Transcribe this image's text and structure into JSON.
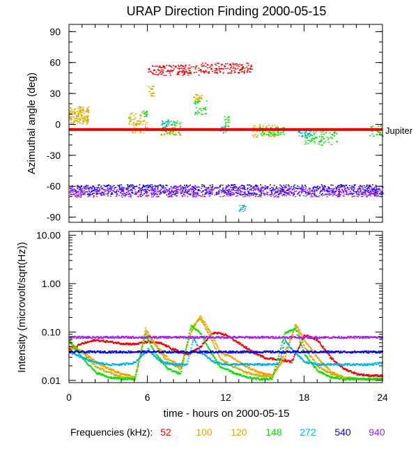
{
  "chart_data": [
    {
      "type": "scatter",
      "title": "URAP Direction Finding  2000-05-15",
      "xlabel": "",
      "ylabel": "Azimuthal angle (deg)",
      "xlim": [
        0,
        24
      ],
      "ylim": [
        -95,
        97
      ],
      "xticks": [
        0,
        6,
        12,
        18,
        24
      ],
      "yticks": [
        90,
        60,
        30,
        0,
        -30,
        -60,
        -90
      ],
      "ytick_labels": [
        "90",
        "60",
        "30",
        "0",
        "-30",
        "-60",
        "-90"
      ],
      "reference_line": {
        "label": "Jupiter",
        "y": -5,
        "color": "#e80000"
      },
      "series": [
        {
          "name": "52",
          "color": "#e80000",
          "clusters": [
            [
              6.0,
              10.0,
              48,
              58
            ],
            [
              10.0,
              14.0,
              50,
              60
            ]
          ]
        },
        {
          "name": "100",
          "color": "#f0a000",
          "clusters": [
            [
              0.0,
              1.5,
              2,
              18
            ],
            [
              4.8,
              6.0,
              -8,
              5
            ],
            [
              7.0,
              8.5,
              -10,
              -2
            ],
            [
              9.5,
              10.2,
              22,
              30
            ]
          ]
        },
        {
          "name": "120",
          "color": "#d0b000",
          "clusters": [
            [
              0.0,
              1.5,
              0,
              15
            ],
            [
              4.5,
              5.5,
              0,
              12
            ],
            [
              6.0,
              6.5,
              28,
              38
            ],
            [
              14.0,
              16.0,
              -12,
              0
            ]
          ]
        },
        {
          "name": "148",
          "color": "#00e000",
          "clusters": [
            [
              5.5,
              6.0,
              8,
              14
            ],
            [
              7.0,
              8.5,
              -10,
              5
            ],
            [
              9.5,
              10.5,
              10,
              25
            ],
            [
              11.8,
              12.3,
              -2,
              8
            ],
            [
              14.5,
              16.5,
              -10,
              -2
            ],
            [
              18.0,
              20.5,
              -20,
              -5
            ],
            [
              23.0,
              24.0,
              -12,
              0
            ]
          ]
        },
        {
          "name": "272",
          "color": "#00b0e0",
          "clusters": [
            [
              7.0,
              8.0,
              -5,
              5
            ],
            [
              11.5,
              12.0,
              -8,
              -2
            ],
            [
              13.0,
              13.5,
              -78,
              -84
            ],
            [
              17.5,
              18.5,
              -12,
              -5
            ]
          ]
        },
        {
          "name": "540",
          "color": "#0000e0",
          "clusters": [
            [
              0.0,
              24.0,
              -58,
              -68
            ]
          ]
        },
        {
          "name": "940",
          "color": "#a020f0",
          "clusters": [
            [
              0.0,
              24.0,
              -60,
              -70
            ]
          ]
        }
      ]
    },
    {
      "type": "line",
      "title": "",
      "xlabel": "time - hours on 2000-05-15",
      "ylabel": "Intensity (microvolt/sqrt(Hz))",
      "yscale": "log",
      "xlim": [
        0,
        24
      ],
      "ylim": [
        0.009,
        12
      ],
      "xticks": [
        0,
        6,
        12,
        18,
        24
      ],
      "xtick_labels": [
        "0",
        "6",
        "12",
        "18",
        "24"
      ],
      "yticks": [
        10.0,
        1.0,
        0.1,
        0.01
      ],
      "ytick_labels": [
        "10.00",
        "1.00",
        "0.10",
        "0.01"
      ],
      "series": [
        {
          "name": "52",
          "color": "#e80000",
          "x": [
            0,
            1,
            2,
            3,
            4,
            5,
            6,
            7,
            8,
            9,
            10,
            11,
            12,
            13,
            14,
            15,
            16,
            17,
            18,
            19,
            20,
            21,
            22,
            23,
            24
          ],
          "y": [
            0.045,
            0.06,
            0.07,
            0.065,
            0.06,
            0.058,
            0.065,
            0.06,
            0.045,
            0.035,
            0.05,
            0.1,
            0.09,
            0.06,
            0.04,
            0.03,
            0.028,
            0.025,
            0.09,
            0.07,
            0.03,
            0.018,
            0.014,
            0.013,
            0.013
          ]
        },
        {
          "name": "100",
          "color": "#f0a000",
          "x": [
            0,
            1,
            2,
            3,
            4,
            5,
            5.8,
            6.5,
            7.5,
            8.5,
            9.3,
            10,
            10.8,
            11.5,
            12.5,
            13.5,
            14.5,
            15.5,
            16.5,
            17.3,
            18,
            19,
            20,
            21,
            22,
            23,
            24
          ],
          "y": [
            0.05,
            0.04,
            0.025,
            0.018,
            0.014,
            0.012,
            0.1,
            0.06,
            0.03,
            0.02,
            0.1,
            0.22,
            0.1,
            0.04,
            0.03,
            0.02,
            0.015,
            0.013,
            0.03,
            0.15,
            0.07,
            0.03,
            0.016,
            0.012,
            0.011,
            0.011,
            0.011
          ]
        },
        {
          "name": "120",
          "color": "#d0b000",
          "x": [
            0,
            1,
            2,
            3,
            4,
            5,
            5.8,
            6.5,
            7.5,
            8.5,
            9.3,
            10,
            10.8,
            11.5,
            12.5,
            13.5,
            14.5,
            15.5,
            16.5,
            17.3,
            18,
            19,
            20,
            21,
            22,
            23,
            24
          ],
          "y": [
            0.06,
            0.04,
            0.02,
            0.015,
            0.012,
            0.011,
            0.12,
            0.06,
            0.025,
            0.018,
            0.12,
            0.2,
            0.08,
            0.03,
            0.02,
            0.015,
            0.013,
            0.012,
            0.04,
            0.14,
            0.05,
            0.02,
            0.014,
            0.012,
            0.011,
            0.011,
            0.011
          ]
        },
        {
          "name": "148",
          "color": "#00e000",
          "x": [
            0,
            1,
            2,
            3,
            4,
            5,
            5.8,
            6.5,
            7.5,
            8.5,
            9.3,
            10,
            10.8,
            11.5,
            12.5,
            13.5,
            14.5,
            15.5,
            16.5,
            17.3,
            18,
            19,
            20,
            21,
            22,
            23,
            24
          ],
          "y": [
            0.07,
            0.03,
            0.015,
            0.012,
            0.011,
            0.011,
            0.09,
            0.04,
            0.018,
            0.014,
            0.14,
            0.1,
            0.04,
            0.02,
            0.015,
            0.012,
            0.011,
            0.011,
            0.1,
            0.12,
            0.035,
            0.016,
            0.012,
            0.011,
            0.011,
            0.011,
            0.011
          ]
        },
        {
          "name": "272",
          "color": "#00b0e0",
          "x": [
            0,
            1,
            2,
            3,
            4,
            5,
            6,
            7,
            8,
            9,
            9.5,
            10,
            11,
            12,
            13,
            14,
            15,
            16,
            16.5,
            17,
            18,
            19,
            20,
            21,
            22,
            23,
            24
          ],
          "y": [
            0.04,
            0.03,
            0.024,
            0.022,
            0.022,
            0.024,
            0.045,
            0.025,
            0.022,
            0.022,
            0.08,
            0.04,
            0.025,
            0.022,
            0.022,
            0.022,
            0.022,
            0.022,
            0.07,
            0.045,
            0.025,
            0.022,
            0.022,
            0.022,
            0.022,
            0.022,
            0.024
          ]
        },
        {
          "name": "540",
          "color": "#0000e0",
          "x": [
            0,
            2,
            4,
            6,
            8,
            10,
            12,
            14,
            16,
            18,
            20,
            22,
            24
          ],
          "y": [
            0.04,
            0.04,
            0.04,
            0.04,
            0.04,
            0.04,
            0.04,
            0.04,
            0.04,
            0.04,
            0.04,
            0.04,
            0.04
          ]
        },
        {
          "name": "940",
          "color": "#a020f0",
          "x": [
            0,
            2,
            4,
            6,
            8,
            10,
            12,
            14,
            16,
            18,
            20,
            22,
            24
          ],
          "y": [
            0.08,
            0.08,
            0.08,
            0.08,
            0.08,
            0.08,
            0.08,
            0.08,
            0.08,
            0.08,
            0.08,
            0.08,
            0.08
          ]
        }
      ]
    }
  ],
  "legend": {
    "label": "Frequencies (kHz):",
    "items": [
      {
        "name": "52",
        "color": "#e80000"
      },
      {
        "name": "100",
        "color": "#f0a000"
      },
      {
        "name": "120",
        "color": "#d0b000"
      },
      {
        "name": "148",
        "color": "#00e000"
      },
      {
        "name": "272",
        "color": "#00b0e0"
      },
      {
        "name": "540",
        "color": "#0000e0"
      },
      {
        "name": "940",
        "color": "#a020f0"
      }
    ]
  }
}
